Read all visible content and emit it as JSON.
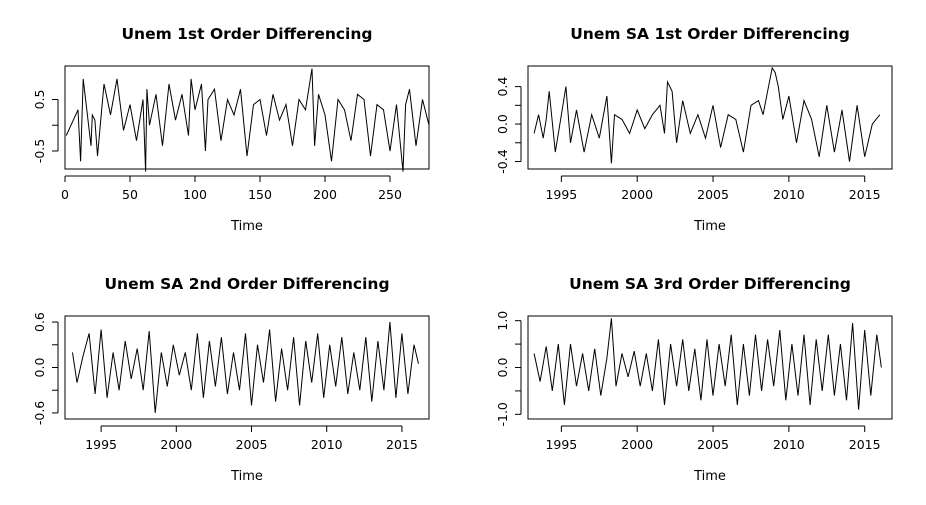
{
  "chart_data": [
    {
      "type": "line",
      "title": "Unem 1st Order Differencing",
      "xlabel": "Time",
      "ylabel": "",
      "xlim": [
        0,
        280
      ],
      "ylim": [
        -0.85,
        1.15
      ],
      "xticks": [
        0,
        50,
        100,
        150,
        200,
        250
      ],
      "xtick_labels": [
        "0",
        "50",
        "100",
        "150",
        "200",
        "250"
      ],
      "yticks": [
        -0.5,
        0.5
      ],
      "ytick_labels": [
        "-0.5",
        "0.5"
      ],
      "grid": false,
      "series": [
        {
          "x": [
            1,
            10,
            12,
            14,
            20,
            21,
            23,
            25,
            30,
            35,
            40,
            45,
            50,
            55,
            60,
            62,
            63,
            65,
            70,
            75,
            80,
            85,
            90,
            95,
            97,
            100,
            105,
            108,
            110,
            115,
            120,
            125,
            130,
            135,
            140,
            145,
            150,
            155,
            160,
            165,
            170,
            175,
            180,
            185,
            190,
            192,
            195,
            200,
            205,
            210,
            215,
            220,
            225,
            230,
            235,
            240,
            245,
            250,
            255,
            260,
            262,
            265,
            270,
            275,
            280
          ],
          "y": [
            -0.2,
            0.3,
            -0.7,
            0.9,
            -0.4,
            0.2,
            0.1,
            -0.6,
            0.8,
            0.2,
            0.9,
            -0.1,
            0.4,
            -0.3,
            0.5,
            -0.9,
            0.7,
            0.0,
            0.6,
            -0.4,
            0.8,
            0.1,
            0.6,
            -0.2,
            0.9,
            0.3,
            0.8,
            -0.5,
            0.5,
            0.7,
            -0.3,
            0.5,
            0.2,
            0.7,
            -0.6,
            0.4,
            0.5,
            -0.2,
            0.6,
            0.1,
            0.4,
            -0.4,
            0.5,
            0.3,
            1.1,
            -0.4,
            0.6,
            0.2,
            -0.7,
            0.5,
            0.3,
            -0.3,
            0.6,
            0.5,
            -0.6,
            0.4,
            0.3,
            -0.5,
            0.4,
            -0.9,
            0.4,
            0.7,
            -0.4,
            0.5,
            0.0
          ]
        }
      ]
    },
    {
      "type": "line",
      "title": "Unem SA 1st Order Differencing",
      "xlabel": "Time",
      "ylabel": "",
      "xlim": [
        1992.8,
        2016.8
      ],
      "ylim": [
        -0.48,
        0.62
      ],
      "xticks": [
        1995,
        2000,
        2005,
        2010,
        2015
      ],
      "xtick_labels": [
        "1995",
        "2000",
        "2005",
        "2010",
        "2015"
      ],
      "yticks": [
        -0.4,
        0.0,
        0.4
      ],
      "ytick_labels": [
        "-0.4",
        "0.0",
        "0.4"
      ],
      "grid": false,
      "series": [
        {
          "x": [
            1993.2,
            1993.5,
            1993.8,
            1994.0,
            1994.2,
            1994.6,
            1995.0,
            1995.3,
            1995.6,
            1996.0,
            1996.5,
            1997.0,
            1997.5,
            1998.0,
            1998.3,
            1998.5,
            1999.0,
            1999.5,
            2000.0,
            2000.5,
            2001.0,
            2001.5,
            2001.8,
            2002.0,
            2002.3,
            2002.6,
            2003.0,
            2003.5,
            2004.0,
            2004.5,
            2005.0,
            2005.5,
            2006.0,
            2006.5,
            2007.0,
            2007.5,
            2008.0,
            2008.3,
            2008.6,
            2008.9,
            2009.1,
            2009.3,
            2009.6,
            2010.0,
            2010.5,
            2011.0,
            2011.5,
            2012.0,
            2012.5,
            2013.0,
            2013.5,
            2014.0,
            2014.5,
            2015.0,
            2015.5,
            2016.0
          ],
          "y": [
            -0.1,
            0.1,
            -0.15,
            0.05,
            0.35,
            -0.3,
            0.1,
            0.4,
            -0.2,
            0.15,
            -0.3,
            0.1,
            -0.15,
            0.3,
            -0.42,
            0.1,
            0.05,
            -0.1,
            0.15,
            -0.05,
            0.1,
            0.2,
            -0.1,
            0.45,
            0.35,
            -0.2,
            0.25,
            -0.1,
            0.1,
            -0.15,
            0.2,
            -0.25,
            0.1,
            0.05,
            -0.3,
            0.2,
            0.25,
            0.1,
            0.35,
            0.6,
            0.55,
            0.4,
            0.05,
            0.3,
            -0.2,
            0.25,
            0.05,
            -0.35,
            0.2,
            -0.3,
            0.15,
            -0.4,
            0.2,
            -0.35,
            0.0,
            0.1
          ]
        }
      ]
    },
    {
      "type": "line",
      "title": "Unem SA 2nd Order Differencing",
      "xlabel": "Time",
      "ylabel": "",
      "xlim": [
        1992.6,
        2016.8
      ],
      "ylim": [
        -0.68,
        0.68
      ],
      "xticks": [
        1995,
        2000,
        2005,
        2010,
        2015
      ],
      "xtick_labels": [
        "1995",
        "2000",
        "2005",
        "2010",
        "2015"
      ],
      "yticks": [
        -0.6,
        0.0,
        0.6
      ],
      "ytick_labels": [
        "-0.6",
        "0.0",
        "0.6"
      ],
      "grid": false,
      "series": [
        {
          "x": [
            1993.1,
            1993.4,
            1993.8,
            1994.2,
            1994.6,
            1995.0,
            1995.4,
            1995.8,
            1996.2,
            1996.6,
            1997.0,
            1997.4,
            1997.8,
            1998.2,
            1998.6,
            1999.0,
            1999.4,
            1999.8,
            2000.2,
            2000.6,
            2001.0,
            2001.4,
            2001.8,
            2002.2,
            2002.6,
            2003.0,
            2003.4,
            2003.8,
            2004.2,
            2004.6,
            2005.0,
            2005.4,
            2005.8,
            2006.2,
            2006.6,
            2007.0,
            2007.4,
            2007.8,
            2008.2,
            2008.6,
            2009.0,
            2009.4,
            2009.8,
            2010.2,
            2010.6,
            2011.0,
            2011.4,
            2011.8,
            2012.2,
            2012.6,
            2013.0,
            2013.4,
            2013.8,
            2014.2,
            2014.6,
            2015.0,
            2015.4,
            2015.8,
            2016.1
          ],
          "y": [
            0.2,
            -0.2,
            0.15,
            0.45,
            -0.35,
            0.5,
            -0.4,
            0.2,
            -0.3,
            0.35,
            -0.15,
            0.25,
            -0.3,
            0.48,
            -0.6,
            0.2,
            -0.25,
            0.3,
            -0.1,
            0.2,
            -0.3,
            0.45,
            -0.4,
            0.35,
            -0.25,
            0.4,
            -0.35,
            0.2,
            -0.3,
            0.45,
            -0.5,
            0.3,
            -0.2,
            0.5,
            -0.45,
            0.25,
            -0.3,
            0.4,
            -0.5,
            0.35,
            -0.2,
            0.45,
            -0.4,
            0.3,
            -0.25,
            0.4,
            -0.35,
            0.2,
            -0.3,
            0.4,
            -0.45,
            0.35,
            -0.3,
            0.6,
            -0.4,
            0.45,
            -0.35,
            0.3,
            0.05
          ]
        }
      ]
    },
    {
      "type": "line",
      "title": "Unem SA 3rd Order Differencing",
      "xlabel": "Time",
      "ylabel": "",
      "xlim": [
        1992.8,
        2016.8
      ],
      "ylim": [
        -1.1,
        1.1
      ],
      "xticks": [
        1995,
        2000,
        2005,
        2010,
        2015
      ],
      "xtick_labels": [
        "1995",
        "2000",
        "2005",
        "2010",
        "2015"
      ],
      "yticks": [
        -1.0,
        0.0,
        1.0
      ],
      "ytick_labels": [
        "-1.0",
        "0.0",
        "1.0"
      ],
      "grid": false,
      "series": [
        {
          "x": [
            1993.2,
            1993.6,
            1994.0,
            1994.4,
            1994.8,
            1995.2,
            1995.6,
            1996.0,
            1996.4,
            1996.8,
            1997.2,
            1997.6,
            1998.0,
            1998.3,
            1998.6,
            1999.0,
            1999.4,
            1999.8,
            2000.2,
            2000.6,
            2001.0,
            2001.4,
            2001.8,
            2002.2,
            2002.6,
            2003.0,
            2003.4,
            2003.8,
            2004.2,
            2004.6,
            2005.0,
            2005.4,
            2005.8,
            2006.2,
            2006.6,
            2007.0,
            2007.4,
            2007.8,
            2008.2,
            2008.6,
            2009.0,
            2009.4,
            2009.8,
            2010.2,
            2010.6,
            2011.0,
            2011.4,
            2011.8,
            2012.2,
            2012.6,
            2013.0,
            2013.4,
            2013.8,
            2014.2,
            2014.6,
            2015.0,
            2015.4,
            2015.8,
            2016.1
          ],
          "y": [
            0.3,
            -0.3,
            0.45,
            -0.5,
            0.5,
            -0.8,
            0.5,
            -0.4,
            0.3,
            -0.5,
            0.4,
            -0.6,
            0.2,
            1.05,
            -0.4,
            0.3,
            -0.2,
            0.35,
            -0.4,
            0.3,
            -0.5,
            0.6,
            -0.8,
            0.5,
            -0.4,
            0.6,
            -0.5,
            0.4,
            -0.7,
            0.6,
            -0.6,
            0.5,
            -0.4,
            0.7,
            -0.8,
            0.5,
            -0.6,
            0.7,
            -0.5,
            0.6,
            -0.4,
            0.8,
            -0.7,
            0.5,
            -0.6,
            0.7,
            -0.8,
            0.6,
            -0.5,
            0.7,
            -0.6,
            0.5,
            -0.7,
            0.95,
            -0.9,
            0.8,
            -0.6,
            0.7,
            0.0
          ]
        }
      ]
    }
  ]
}
